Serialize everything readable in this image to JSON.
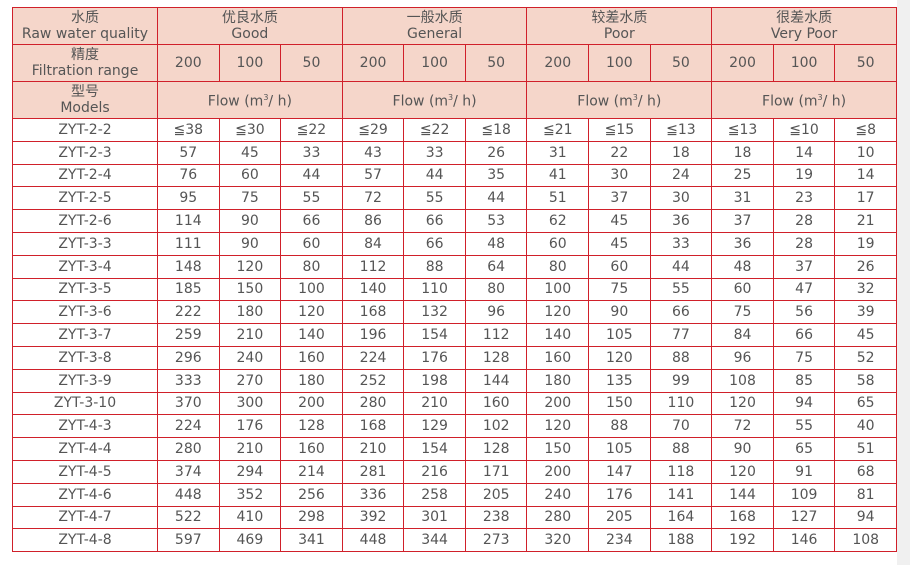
{
  "header": {
    "quality_label_cn": "水质",
    "quality_label_en": "Raw water quality",
    "range_label_cn": "精度",
    "range_label_en": "Filtration range",
    "models_label_cn": "型号",
    "models_label_en": "Models",
    "groups": [
      {
        "cn": "优良水质",
        "en": "Good",
        "ranges": [
          "200",
          "100",
          "50"
        ],
        "flow": "Flow (m",
        "flow_sup": "3",
        "flow_end": "/ h)"
      },
      {
        "cn": "一般水质",
        "en": "General",
        "ranges": [
          "200",
          "100",
          "50"
        ],
        "flow": "Flow (m",
        "flow_sup": "3",
        "flow_end": "/ h)"
      },
      {
        "cn": "较差水质",
        "en": "Poor",
        "ranges": [
          "200",
          "100",
          "50"
        ],
        "flow": "Flow (m",
        "flow_sup": "3",
        "flow_end": "/ h)"
      },
      {
        "cn": "很差水质",
        "en": "Very Poor",
        "ranges": [
          "200",
          "100",
          "50"
        ],
        "flow": "Flow (m",
        "flow_sup": "3",
        "flow_end": "/ h)"
      }
    ]
  },
  "colors": {
    "border": "#d0202a",
    "header_bg": "#f5d6ca",
    "text": "#555555"
  },
  "rows": [
    [
      "ZYT-2-2",
      "≦38",
      "≦30",
      "≦22",
      "≦29",
      "≦22",
      "≦18",
      "≦21",
      "≦15",
      "≦13",
      "≦13",
      "≦10",
      "≦8"
    ],
    [
      "ZYT-2-3",
      "57",
      "45",
      "33",
      "43",
      "33",
      "26",
      "31",
      "22",
      "18",
      "18",
      "14",
      "10"
    ],
    [
      "ZYT-2-4",
      "76",
      "60",
      "44",
      "57",
      "44",
      "35",
      "41",
      "30",
      "24",
      "25",
      "19",
      "14"
    ],
    [
      "ZYT-2-5",
      "95",
      "75",
      "55",
      "72",
      "55",
      "44",
      "51",
      "37",
      "30",
      "31",
      "23",
      "17"
    ],
    [
      "ZYT-2-6",
      "114",
      "90",
      "66",
      "86",
      "66",
      "53",
      "62",
      "45",
      "36",
      "37",
      "28",
      "21"
    ],
    [
      "ZYT-3-3",
      "111",
      "90",
      "60",
      "84",
      "66",
      "48",
      "60",
      "45",
      "33",
      "36",
      "28",
      "19"
    ],
    [
      "ZYT-3-4",
      "148",
      "120",
      "80",
      "112",
      "88",
      "64",
      "80",
      "60",
      "44",
      "48",
      "37",
      "26"
    ],
    [
      "ZYT-3-5",
      "185",
      "150",
      "100",
      "140",
      "110",
      "80",
      "100",
      "75",
      "55",
      "60",
      "47",
      "32"
    ],
    [
      "ZYT-3-6",
      "222",
      "180",
      "120",
      "168",
      "132",
      "96",
      "120",
      "90",
      "66",
      "75",
      "56",
      "39"
    ],
    [
      "ZYT-3-7",
      "259",
      "210",
      "140",
      "196",
      "154",
      "112",
      "140",
      "105",
      "77",
      "84",
      "66",
      "45"
    ],
    [
      "ZYT-3-8",
      "296",
      "240",
      "160",
      "224",
      "176",
      "128",
      "160",
      "120",
      "88",
      "96",
      "75",
      "52"
    ],
    [
      "ZYT-3-9",
      "333",
      "270",
      "180",
      "252",
      "198",
      "144",
      "180",
      "135",
      "99",
      "108",
      "85",
      "58"
    ],
    [
      "ZYT-3-10",
      "370",
      "300",
      "200",
      "280",
      "210",
      "160",
      "200",
      "150",
      "110",
      "120",
      "94",
      "65"
    ],
    [
      "ZYT-4-3",
      "224",
      "176",
      "128",
      "168",
      "129",
      "102",
      "120",
      "88",
      "70",
      "72",
      "55",
      "40"
    ],
    [
      "ZYT-4-4",
      "280",
      "210",
      "160",
      "210",
      "154",
      "128",
      "150",
      "105",
      "88",
      "90",
      "65",
      "51"
    ],
    [
      "ZYT-4-5",
      "374",
      "294",
      "214",
      "281",
      "216",
      "171",
      "200",
      "147",
      "118",
      "120",
      "91",
      "68"
    ],
    [
      "ZYT-4-6",
      "448",
      "352",
      "256",
      "336",
      "258",
      "205",
      "240",
      "176",
      "141",
      "144",
      "109",
      "81"
    ],
    [
      "ZYT-4-7",
      "522",
      "410",
      "298",
      "392",
      "301",
      "238",
      "280",
      "205",
      "164",
      "168",
      "127",
      "94"
    ],
    [
      "ZYT-4-8",
      "597",
      "469",
      "341",
      "448",
      "344",
      "273",
      "320",
      "234",
      "188",
      "192",
      "146",
      "108"
    ]
  ]
}
